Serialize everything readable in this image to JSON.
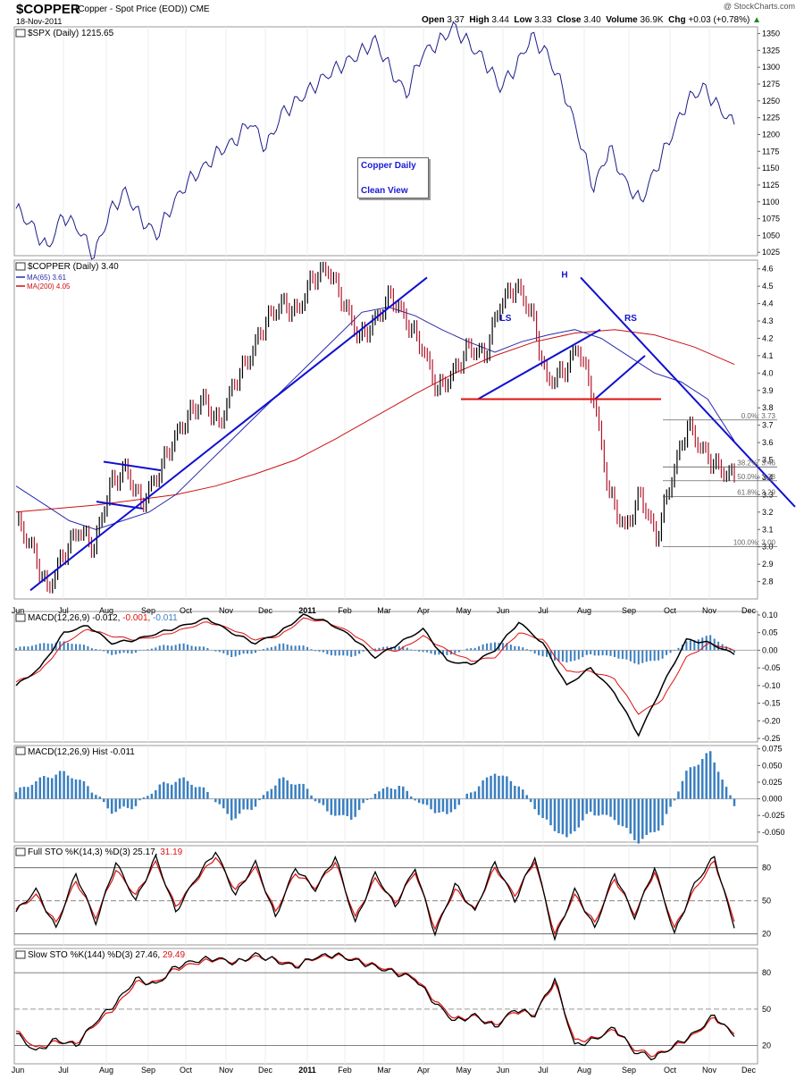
{
  "header": {
    "symbol": "$COPPER",
    "description": "(Copper - Spot Price (EOD))",
    "exchange": "CME",
    "date": "18-Nov-2011",
    "watermark": "@ StockCharts.com",
    "open_label": "Open",
    "open": "3.37",
    "high_label": "High",
    "high": "3.44",
    "low_label": "Low",
    "low": "3.33",
    "close_label": "Close",
    "close": "3.40",
    "volume_label": "Volume",
    "volume": "36.9K",
    "chg_label": "Chg",
    "chg": "+0.03 (+0.78%)"
  },
  "annotation_box": {
    "line1": "Copper Daily",
    "line2": "Clean View"
  },
  "x_axis_labels": [
    "Jun",
    "Jul",
    "Aug",
    "Sep",
    "Oct",
    "Nov",
    "Dec",
    "2011",
    "Feb",
    "Mar",
    "Apr",
    "May",
    "Jun",
    "Jul",
    "Aug",
    "Sep",
    "Oct",
    "Nov",
    "Dec"
  ],
  "colors": {
    "spx": "#1c1c8a",
    "copper_up": "#000000",
    "copper_down": "#b0152a",
    "ma65": "#2a2aaa",
    "ma200": "#cc1111",
    "trendline": "#1010d0",
    "neckline": "#dd1111",
    "hist": "#3a7fc0",
    "signal": "#dd1111"
  },
  "chart_data": [
    {
      "type": "line",
      "title": "$SPX (Daily) 1215.65",
      "series": [
        {
          "name": "$SPX",
          "values": [
            1090,
            1065,
            1030,
            1080,
            1060,
            1020,
            1085,
            1115,
            1075,
            1050,
            1095,
            1130,
            1150,
            1175,
            1190,
            1220,
            1180,
            1230,
            1250,
            1270,
            1290,
            1305,
            1320,
            1340,
            1295,
            1260,
            1320,
            1335,
            1360,
            1335,
            1310,
            1270,
            1300,
            1345,
            1320,
            1270,
            1200,
            1120,
            1180,
            1130,
            1100,
            1150,
            1200,
            1250,
            1270,
            1240,
            1215
          ]
        }
      ],
      "ylim": [
        1020,
        1360
      ],
      "yticks": [
        1025,
        1050,
        1075,
        1100,
        1125,
        1150,
        1175,
        1200,
        1225,
        1250,
        1275,
        1300,
        1325,
        1350
      ]
    },
    {
      "type": "line",
      "title": "$COPPER (Daily) 3.40",
      "series": [
        {
          "name": "$COPPER",
          "values": [
            3.15,
            3.0,
            2.75,
            2.95,
            3.1,
            3.0,
            3.35,
            3.45,
            3.25,
            3.4,
            3.6,
            3.75,
            3.85,
            3.7,
            3.95,
            4.1,
            4.3,
            4.4,
            4.35,
            4.55,
            4.6,
            4.4,
            4.2,
            4.3,
            4.45,
            4.3,
            4.15,
            3.9,
            4.0,
            4.15,
            4.1,
            4.4,
            4.5,
            4.35,
            3.95,
            4.0,
            4.15,
            3.85,
            3.3,
            3.1,
            3.3,
            3.05,
            3.4,
            3.7,
            3.55,
            3.45,
            3.4
          ]
        },
        {
          "name": "MA(65) 3.61",
          "values": [
            3.35,
            3.25,
            3.15,
            3.1,
            3.15,
            3.2,
            3.3,
            3.45,
            3.6,
            3.75,
            3.9,
            4.05,
            4.2,
            4.35,
            4.38,
            4.33,
            4.25,
            4.18,
            4.12,
            4.18,
            4.22,
            4.25,
            4.2,
            4.1,
            4.0,
            3.95,
            3.85,
            3.61
          ]
        },
        {
          "name": "MA(200) 4.05",
          "values": [
            3.2,
            3.22,
            3.24,
            3.27,
            3.3,
            3.35,
            3.42,
            3.5,
            3.62,
            3.75,
            3.88,
            4.0,
            4.1,
            4.18,
            4.23,
            4.25,
            4.22,
            4.15,
            4.05
          ]
        }
      ],
      "ylim": [
        2.7,
        4.65
      ],
      "yticks": [
        2.8,
        2.9,
        3.0,
        3.1,
        3.2,
        3.3,
        3.4,
        3.5,
        3.6,
        3.7,
        3.8,
        3.9,
        4.0,
        4.1,
        4.2,
        4.3,
        4.4,
        4.5,
        4.6
      ],
      "annotations": [
        "LS",
        "H",
        "RS"
      ],
      "fib_labels": [
        "0.0%: 3.73",
        "38.2%: 3.46",
        "50.0%: 3.38",
        "61.8%: 3.29",
        "100.0%: 3.00"
      ]
    },
    {
      "type": "line",
      "title": "MACD(12,26,9) -0.012, -0.001, -0.011",
      "title_parts": {
        "name": "MACD(12,26,9)",
        "macd": "-0.012,",
        "signal": "-0.001,",
        "hist": "-0.011"
      },
      "series": [
        {
          "name": "MACD",
          "values": [
            -0.1,
            -0.05,
            0.05,
            0.07,
            0.02,
            0.03,
            0.05,
            0.07,
            0.09,
            0.05,
            0.02,
            0.05,
            0.1,
            0.08,
            0.04,
            -0.02,
            0.02,
            0.06,
            -0.03,
            -0.04,
            0.0,
            0.08,
            0.02,
            -0.1,
            -0.05,
            -0.12,
            -0.24,
            -0.1,
            0.03,
            0.02,
            -0.012
          ]
        },
        {
          "name": "Signal",
          "values": [
            -0.09,
            -0.06,
            0.02,
            0.06,
            0.04,
            0.03,
            0.04,
            0.06,
            0.08,
            0.06,
            0.03,
            0.04,
            0.09,
            0.08,
            0.05,
            0.0,
            0.0,
            0.04,
            0.0,
            -0.03,
            -0.02,
            0.05,
            0.03,
            -0.06,
            -0.06,
            -0.08,
            -0.18,
            -0.14,
            -0.02,
            0.02,
            -0.001
          ]
        }
      ],
      "ylim": [
        -0.26,
        0.11
      ],
      "yticks": [
        0.1,
        0.05,
        0.0,
        -0.05,
        -0.1,
        -0.15,
        -0.2,
        -0.25
      ]
    },
    {
      "type": "bar",
      "title": "MACD(12,26,9) Hist -0.011",
      "series": [
        {
          "name": "Hist",
          "values": [
            0.01,
            0.03,
            0.04,
            0.02,
            -0.02,
            -0.01,
            0.02,
            0.03,
            0.01,
            -0.03,
            -0.01,
            0.03,
            0.02,
            -0.02,
            -0.03,
            0.01,
            0.02,
            -0.01,
            -0.025,
            0.01,
            0.04,
            0.02,
            -0.03,
            -0.06,
            -0.02,
            -0.03,
            -0.065,
            -0.04,
            0.04,
            0.07,
            -0.011
          ]
        }
      ],
      "ylim": [
        -0.065,
        0.08
      ],
      "yticks": [
        0.075,
        0.05,
        0.025,
        0.0,
        -0.025,
        -0.05
      ]
    },
    {
      "type": "line",
      "title": "Full STO %K(14,3) %D(3) 25.17, 31.19",
      "title_parts": {
        "name": "Full STO %K(14,3) %D(3)",
        "k": "25.17,",
        "d": "31.19"
      },
      "series": [
        {
          "name": "%K",
          "values": [
            40,
            60,
            25,
            75,
            30,
            85,
            50,
            90,
            40,
            70,
            95,
            55,
            85,
            35,
            80,
            60,
            90,
            30,
            75,
            45,
            80,
            20,
            65,
            40,
            85,
            50,
            90,
            15,
            60,
            25,
            75,
            35,
            80,
            20,
            65,
            90,
            25.17
          ]
        },
        {
          "name": "%D",
          "values": [
            42,
            55,
            30,
            68,
            35,
            78,
            55,
            85,
            45,
            68,
            90,
            60,
            80,
            40,
            75,
            62,
            85,
            35,
            70,
            48,
            76,
            25,
            60,
            42,
            80,
            55,
            86,
            20,
            55,
            30,
            70,
            38,
            76,
            25,
            60,
            86,
            31.19
          ]
        }
      ],
      "ylim": [
        10,
        100
      ],
      "yticks": [
        80,
        50,
        20
      ]
    },
    {
      "type": "line",
      "title": "Slow STO %K(144) %D(3) 27.46, 29.49",
      "title_parts": {
        "name": "Slow STO %K(144) %D(3)",
        "k": "27.46,",
        "d": "29.49"
      },
      "series": [
        {
          "name": "%K",
          "values": [
            30,
            15,
            25,
            20,
            40,
            55,
            75,
            70,
            85,
            90,
            92,
            88,
            95,
            90,
            85,
            93,
            95,
            90,
            85,
            80,
            75,
            55,
            40,
            45,
            35,
            50,
            45,
            75,
            20,
            25,
            35,
            15,
            10,
            20,
            30,
            45,
            27.46
          ]
        },
        {
          "name": "%D",
          "values": [
            32,
            18,
            23,
            22,
            38,
            52,
            72,
            72,
            83,
            88,
            91,
            89,
            93,
            91,
            86,
            92,
            94,
            91,
            86,
            81,
            76,
            57,
            42,
            44,
            37,
            48,
            46,
            72,
            24,
            26,
            33,
            17,
            12,
            19,
            29,
            43,
            29.49
          ]
        }
      ],
      "ylim": [
        5,
        100
      ],
      "yticks": [
        80,
        50,
        20
      ]
    }
  ]
}
